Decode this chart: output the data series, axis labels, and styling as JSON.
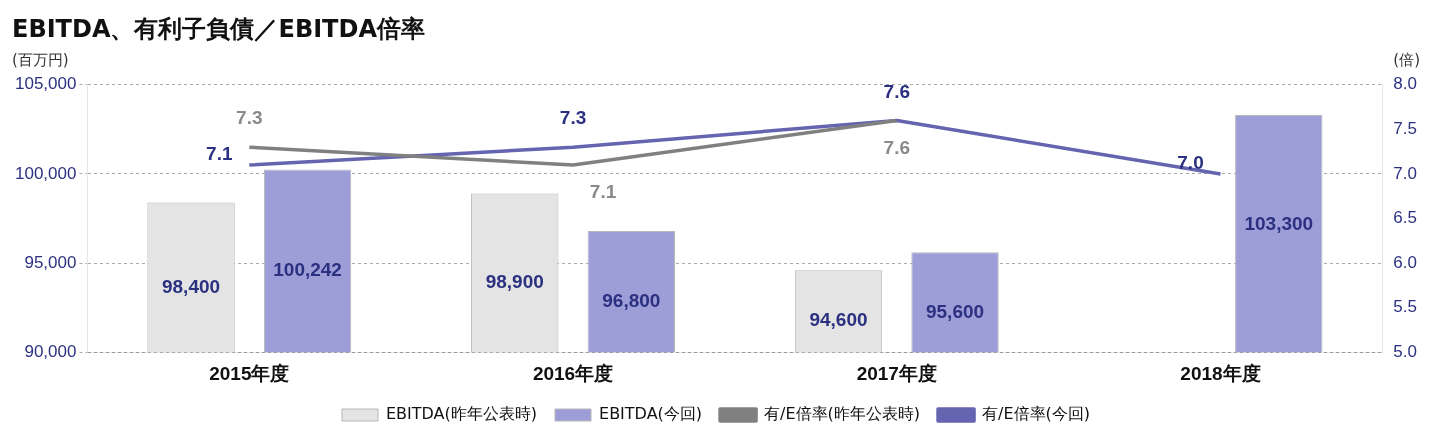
{
  "chart_data": {
    "type": "bar",
    "title": "EBITDA、有利子負債／EBITDA倍率",
    "ylabel": "(百万円)",
    "y2label": "(倍)",
    "categories": [
      "2015年度",
      "2016年度",
      "2017年度",
      "2018年度"
    ],
    "series": [
      {
        "name": "EBITDA(昨年公表時)",
        "color": "#e4e4e4",
        "values": [
          98400,
          98900,
          94600,
          null
        ],
        "value_labels": [
          "98,400",
          "98,900",
          "94,600",
          null
        ]
      },
      {
        "name": "EBITDA(今回)",
        "color": "#9d9dd8",
        "values": [
          100242,
          96800,
          95600,
          103300
        ],
        "value_labels": [
          "100,242",
          "96,800",
          "95,600",
          "103,300"
        ]
      },
      {
        "name": "有/E倍率(昨年公表時)",
        "type": "line",
        "axis": "y2",
        "color": "#808080",
        "values": [
          7.3,
          7.1,
          7.6,
          null
        ],
        "value_labels": [
          "7.3",
          "7.1",
          "7.6",
          null
        ]
      },
      {
        "name": "有/E倍率(今回)",
        "type": "line",
        "axis": "y2",
        "color": "#6464b0",
        "values": [
          7.1,
          7.3,
          7.6,
          7.0
        ],
        "value_labels": [
          "7.1",
          "7.3",
          "7.6",
          "7.0"
        ]
      }
    ],
    "ylim": [
      90000,
      105000
    ],
    "yticks": [
      {
        "value": 90000,
        "label": "90,000"
      },
      {
        "value": 95000,
        "label": "95,000"
      },
      {
        "value": 100000,
        "label": "100,000"
      },
      {
        "value": 105000,
        "label": "105,000"
      }
    ],
    "y2lim": [
      5.0,
      8.0
    ],
    "y2ticks": [
      {
        "value": 5.0,
        "label": "5.0"
      },
      {
        "value": 5.5,
        "label": "5.5"
      },
      {
        "value": 6.0,
        "label": "6.0"
      },
      {
        "value": 6.5,
        "label": "6.5"
      },
      {
        "value": 7.0,
        "label": "7.0"
      },
      {
        "value": 7.5,
        "label": "7.5"
      },
      {
        "value": 8.0,
        "label": "8.0"
      }
    ],
    "grid": "y",
    "legend": "bottom",
    "marker": "none",
    "line_style": "solid"
  }
}
